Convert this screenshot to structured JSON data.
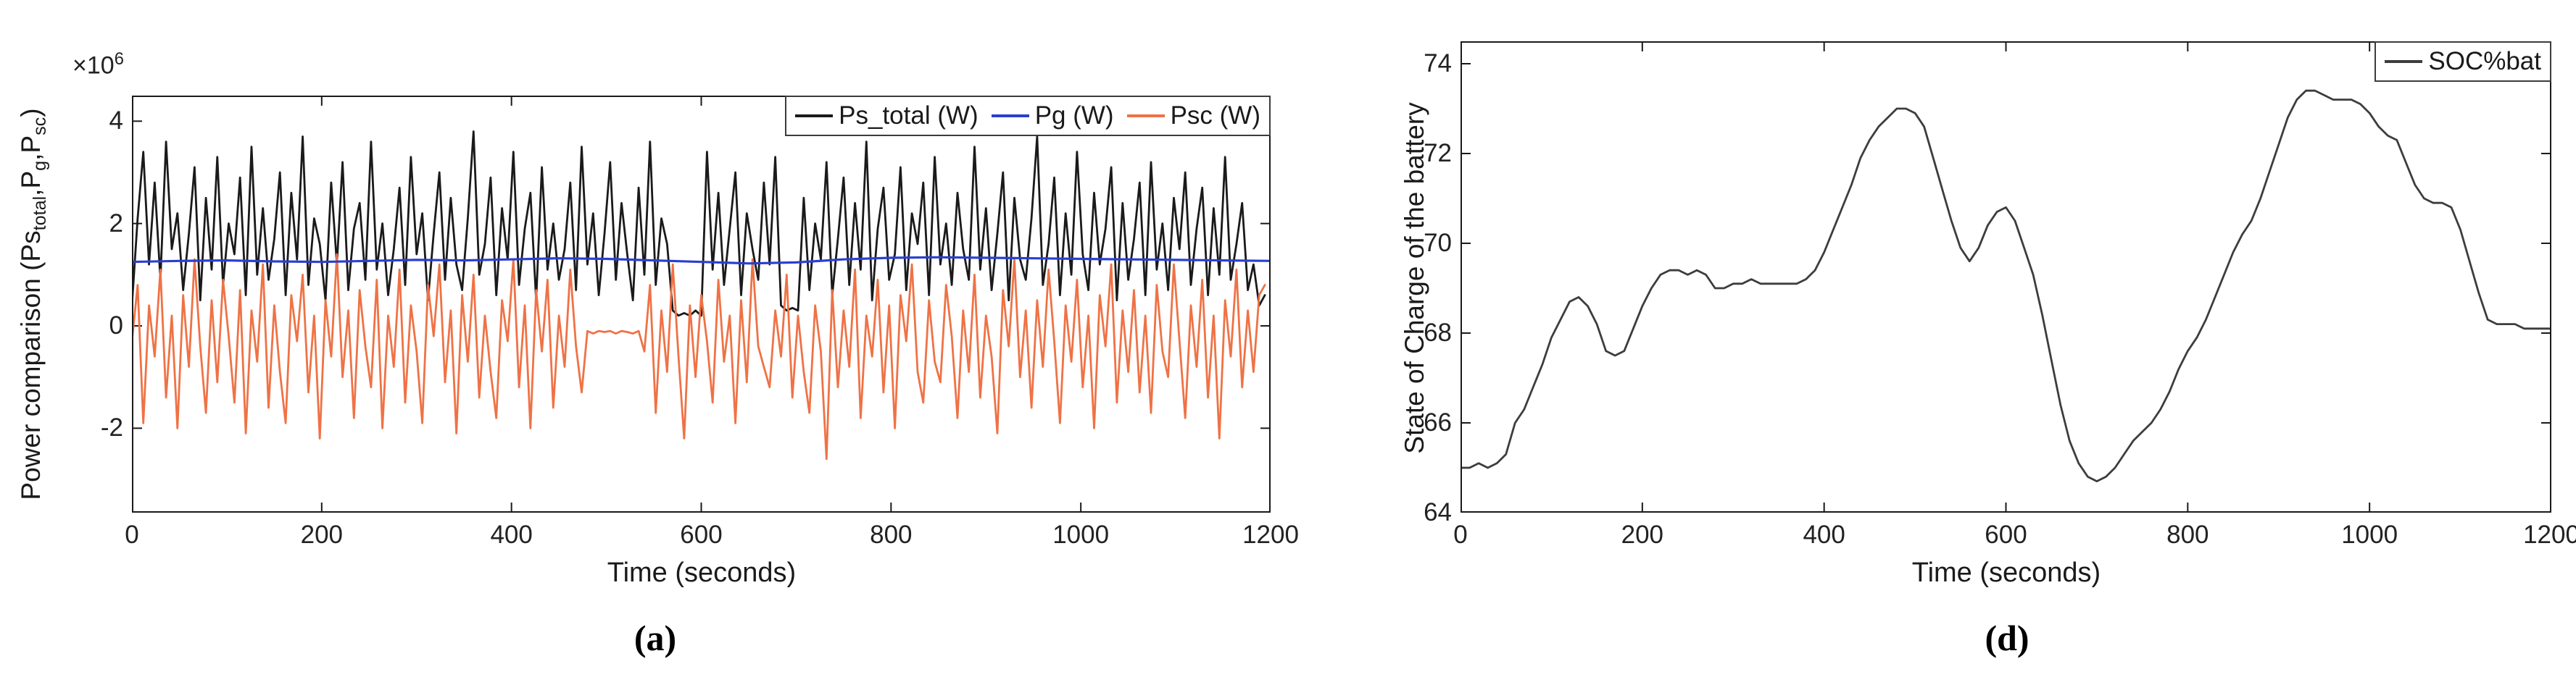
{
  "page": {
    "background": "#ffffff"
  },
  "chart_data": [
    {
      "type": "line",
      "panel_label": "(a)",
      "xlabel": "Time (seconds)",
      "ylabel_plain": "Power comparison (Ps_total,Pg,Psc)",
      "ylabel_segments": [
        {
          "t": "Power comparison (Ps"
        },
        {
          "t": "total",
          "sub": true
        },
        {
          "t": ",P"
        },
        {
          "t": "g",
          "sub": true
        },
        {
          "t": ",P"
        },
        {
          "t": "sc",
          "sub": true
        },
        {
          "t": ")"
        }
      ],
      "y_offset_label": {
        "base": "×10",
        "exponent": "6"
      },
      "y_unit_multiplier": 1000000,
      "xlim": [
        0,
        1200
      ],
      "ylim": [
        -3.65,
        4.5
      ],
      "xticks": [
        0,
        200,
        400,
        600,
        800,
        1000,
        1200
      ],
      "yticks": [
        -2,
        0,
        2,
        4
      ],
      "grid": false,
      "legend_position": "top-right",
      "axis_color": "#1a1a1a",
      "series": [
        {
          "name": "Ps_total (W)",
          "color": "#1a1a1a",
          "z": 1,
          "lw": 2.8,
          "x0": 0,
          "dx": 6,
          "y": [
            0.4,
            2.1,
            3.4,
            1.2,
            2.8,
            0.9,
            3.6,
            1.5,
            2.2,
            0.7,
            1.8,
            3.1,
            0.5,
            2.5,
            1.1,
            3.3,
            0.8,
            2.0,
            1.4,
            2.9,
            0.6,
            3.5,
            1.0,
            2.3,
            0.9,
            1.7,
            3.0,
            0.6,
            2.6,
            1.3,
            3.7,
            0.8,
            2.1,
            1.6,
            0.5,
            2.8,
            1.2,
            3.2,
            0.7,
            1.9,
            2.4,
            0.9,
            3.6,
            1.1,
            2.0,
            0.6,
            1.5,
            2.7,
            0.8,
            3.3,
            1.4,
            2.2,
            0.5,
            1.8,
            3.0,
            0.9,
            2.5,
            1.2,
            0.7,
            2.1,
            3.8,
            1.0,
            1.6,
            2.9,
            0.6,
            2.3,
            1.3,
            3.4,
            0.8,
            1.9,
            2.6,
            0.5,
            3.1,
            1.1,
            2.0,
            0.9,
            1.5,
            2.8,
            0.7,
            3.5,
            1.2,
            2.2,
            0.6,
            1.8,
            3.2,
            0.9,
            2.4,
            1.4,
            0.5,
            2.7,
            1.0,
            3.6,
            0.8,
            2.1,
            1.6,
            0.3,
            0.2,
            0.25,
            0.2,
            0.3,
            0.2,
            3.4,
            1.1,
            2.6,
            0.8,
            1.9,
            3.0,
            0.6,
            2.2,
            1.5,
            0.9,
            2.8,
            1.2,
            3.3,
            0.4,
            0.3,
            0.35,
            0.3,
            2.5,
            0.7,
            2.0,
            1.3,
            3.2,
            0.6,
            1.7,
            2.9,
            0.8,
            2.4,
            1.1,
            3.6,
            0.5,
            1.9,
            2.7,
            0.9,
            1.4,
            3.1,
            0.7,
            2.2,
            1.6,
            2.8,
            0.6,
            3.3,
            1.2,
            2.0,
            0.8,
            2.6,
            1.5,
            0.9,
            3.5,
            1.1,
            2.3,
            0.7,
            1.8,
            3.0,
            0.5,
            2.5,
            1.3,
            0.9,
            2.1,
            3.7,
            0.8,
            1.6,
            2.9,
            0.6,
            2.2,
            1.0,
            3.4,
            1.4,
            0.7,
            2.6,
            1.2,
            1.9,
            3.1,
            0.5,
            2.4,
            0.9,
            1.7,
            2.8,
            0.6,
            3.2,
            1.1,
            2.0,
            0.7,
            2.5,
            1.5,
            3.0,
            0.8,
            1.9,
            2.7,
            0.6,
            2.3,
            1.0,
            3.3,
            0.9,
            1.6,
            2.4,
            0.7,
            1.2,
            0.4,
            0.6
          ]
        },
        {
          "name": "Pg (W)",
          "color": "#2b3fd0",
          "z": 3,
          "lw": 3.2,
          "x0": 0,
          "dx": 50,
          "y": [
            1.25,
            1.27,
            1.28,
            1.26,
            1.25,
            1.27,
            1.29,
            1.28,
            1.3,
            1.32,
            1.31,
            1.28,
            1.25,
            1.22,
            1.24,
            1.3,
            1.33,
            1.34,
            1.33,
            1.32,
            1.31,
            1.3,
            1.29,
            1.28,
            1.27
          ]
        },
        {
          "name": "Psc (W)",
          "color": "#ef7245",
          "z": 2,
          "lw": 2.8,
          "x0": 0,
          "dx": 6,
          "y": [
            -0.3,
            0.8,
            -1.9,
            0.4,
            -0.6,
            1.1,
            -1.4,
            0.2,
            -2.0,
            0.6,
            -0.8,
            1.3,
            -0.4,
            -1.7,
            0.5,
            -1.1,
            0.9,
            -0.2,
            -1.5,
            0.7,
            -2.1,
            0.3,
            -0.7,
            1.2,
            -1.6,
            0.4,
            -0.9,
            -1.9,
            0.6,
            -0.3,
            1.0,
            -1.3,
            0.2,
            -2.2,
            0.5,
            -0.6,
            1.4,
            -1.0,
            0.3,
            -1.8,
            0.7,
            -0.4,
            -1.2,
            0.9,
            -2.0,
            0.2,
            -0.8,
            1.1,
            -1.5,
            0.4,
            -0.5,
            -1.9,
            0.8,
            -0.2,
            1.2,
            -1.1,
            0.3,
            -2.1,
            0.6,
            -0.7,
            1.0,
            -1.4,
            0.2,
            -0.9,
            -1.8,
            0.5,
            -0.3,
            1.3,
            -1.2,
            0.4,
            -2.0,
            0.7,
            -0.5,
            0.9,
            -1.6,
            0.2,
            -0.8,
            1.1,
            -0.4,
            -1.3,
            -0.1,
            -0.15,
            -0.1,
            -0.12,
            -0.1,
            -0.15,
            -0.1,
            -0.12,
            -0.15,
            -0.1,
            -0.5,
            0.8,
            -1.7,
            0.3,
            -0.9,
            1.2,
            -0.6,
            -2.2,
            0.4,
            -1.0,
            0.6,
            -0.3,
            -1.5,
            0.9,
            -0.7,
            0.2,
            -1.9,
            0.5,
            -1.1,
            1.3,
            -0.4,
            -0.8,
            -1.2,
            0.3,
            -0.6,
            1.0,
            -1.4,
            0.2,
            -0.9,
            -1.7,
            0.4,
            -0.5,
            -2.6,
            0.7,
            -1.2,
            0.3,
            -0.8,
            1.1,
            -1.8,
            0.2,
            -0.6,
            0.9,
            -1.3,
            0.4,
            -2.0,
            0.6,
            -0.3,
            1.2,
            -0.9,
            -1.5,
            0.5,
            -0.7,
            -1.1,
            0.8,
            -0.2,
            -1.8,
            0.3,
            -0.9,
            1.0,
            -1.4,
            0.2,
            -0.6,
            -2.1,
            0.7,
            -0.4,
            1.3,
            -1.0,
            0.3,
            -1.6,
            0.5,
            -0.8,
            1.1,
            -0.3,
            -1.9,
            0.4,
            -0.7,
            0.9,
            -1.2,
            0.2,
            -2.0,
            0.6,
            -0.4,
            1.2,
            -1.5,
            0.3,
            -0.9,
            0.7,
            -1.3,
            0.2,
            -1.7,
            0.8,
            -0.5,
            -1.0,
            1.2,
            -0.3,
            -1.8,
            0.4,
            -0.8,
            0.9,
            -1.4,
            0.2,
            -2.2,
            0.5,
            -0.6,
            1.1,
            -1.2,
            0.3,
            -0.9,
            0.6,
            0.8
          ]
        }
      ]
    },
    {
      "type": "line",
      "panel_label": "(d)",
      "xlabel": "Time (seconds)",
      "ylabel": "State of Charge of the battery",
      "xlim": [
        0,
        1200
      ],
      "ylim": [
        64,
        74.5
      ],
      "xticks": [
        0,
        200,
        400,
        600,
        800,
        1000,
        1200
      ],
      "yticks": [
        64,
        66,
        68,
        70,
        72,
        74
      ],
      "grid": false,
      "legend_position": "top-right",
      "axis_color": "#1a1a1a",
      "series": [
        {
          "name": "SOC%bat",
          "color": "#3d3d3d",
          "z": 1,
          "lw": 2.8,
          "x0": 0,
          "dx": 10,
          "y": [
            65.0,
            65.0,
            65.1,
            65.0,
            65.1,
            65.3,
            66.0,
            66.3,
            66.8,
            67.3,
            67.9,
            68.3,
            68.7,
            68.8,
            68.6,
            68.2,
            67.6,
            67.5,
            67.6,
            68.1,
            68.6,
            69.0,
            69.3,
            69.4,
            69.4,
            69.3,
            69.4,
            69.3,
            69.0,
            69.0,
            69.1,
            69.1,
            69.2,
            69.1,
            69.1,
            69.1,
            69.1,
            69.1,
            69.2,
            69.4,
            69.8,
            70.3,
            70.8,
            71.3,
            71.9,
            72.3,
            72.6,
            72.8,
            73.0,
            73.0,
            72.9,
            72.6,
            71.9,
            71.2,
            70.5,
            69.9,
            69.6,
            69.9,
            70.4,
            70.7,
            70.8,
            70.5,
            69.9,
            69.3,
            68.4,
            67.4,
            66.4,
            65.6,
            65.1,
            64.8,
            64.7,
            64.8,
            65.0,
            65.3,
            65.6,
            65.8,
            66.0,
            66.3,
            66.7,
            67.2,
            67.6,
            67.9,
            68.3,
            68.8,
            69.3,
            69.8,
            70.2,
            70.5,
            71.0,
            71.6,
            72.2,
            72.8,
            73.2,
            73.4,
            73.4,
            73.3,
            73.2,
            73.2,
            73.2,
            73.1,
            72.9,
            72.6,
            72.4,
            72.3,
            71.8,
            71.3,
            71.0,
            70.9,
            70.9,
            70.8,
            70.3,
            69.6,
            68.9,
            68.3,
            68.2,
            68.2,
            68.2,
            68.1,
            68.1,
            68.1,
            68.1
          ]
        }
      ]
    }
  ]
}
